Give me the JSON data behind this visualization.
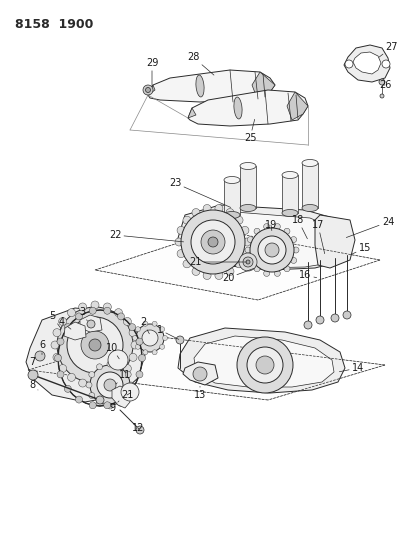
{
  "title": "8158 1900",
  "bg_color": "#ffffff",
  "line_color": "#2a2a2a",
  "label_color": "#1a1a1a",
  "label_fontsize": 7.0,
  "fig_width": 4.11,
  "fig_height": 5.33,
  "dpi": 100,
  "shaft_color": "#f5f5f5",
  "part_color": "#eeeeee",
  "dark_part": "#cccccc",
  "gear_color": "#dddddd"
}
